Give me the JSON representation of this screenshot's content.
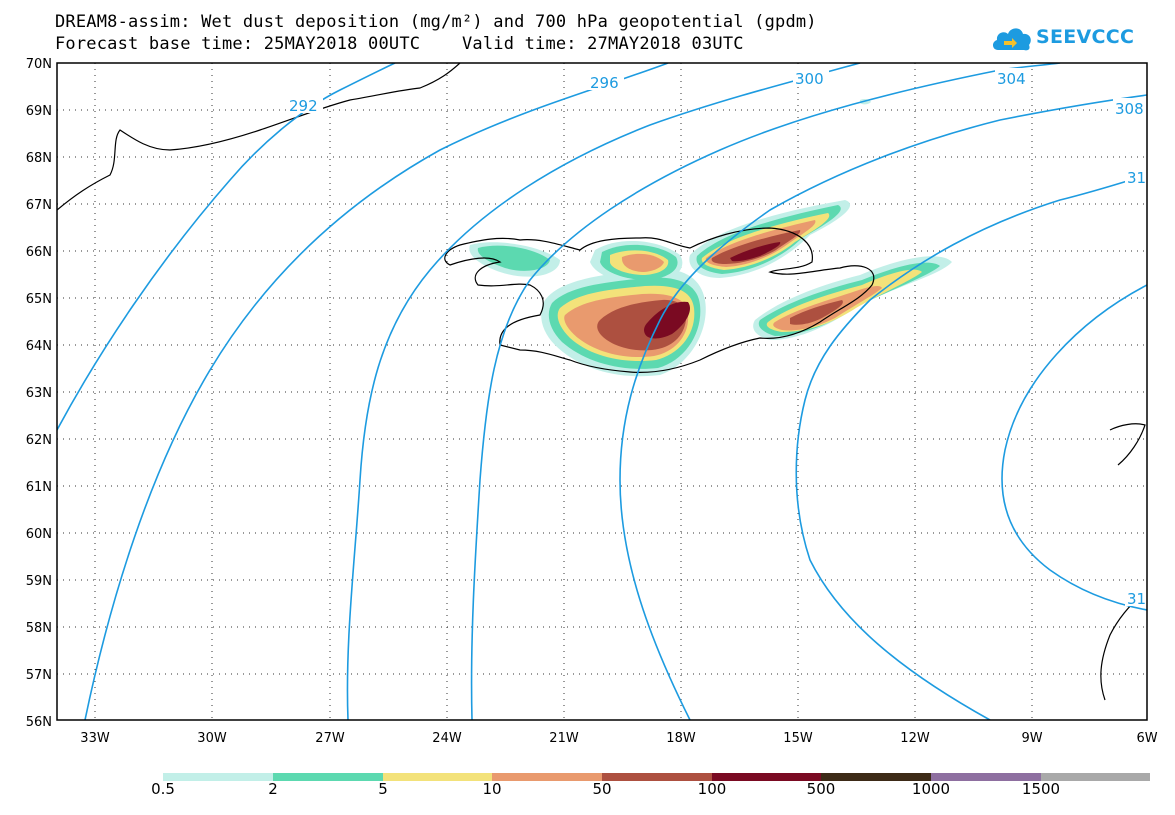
{
  "header": {
    "line1": "DREAM8-assim: Wet dust deposition (mg/m²) and 700 hPa geopotential (gpdm)",
    "line2": "Forecast base time: 25MAY2018 00UTC    Valid time: 27MAY2018 03UTC"
  },
  "logo": {
    "text": "SEEVCCC",
    "icon": "cloud-icon",
    "color": "#1d9be0"
  },
  "map": {
    "lat_labels": [
      "70N",
      "69N",
      "68N",
      "67N",
      "66N",
      "65N",
      "64N",
      "63N",
      "62N",
      "61N",
      "60N",
      "59N",
      "58N",
      "57N",
      "56N"
    ],
    "lon_labels": [
      "33W",
      "30W",
      "27W",
      "24W",
      "21W",
      "18W",
      "15W",
      "12W",
      "9W",
      "6W"
    ],
    "contour_labels": [
      "292",
      "296",
      "300",
      "304",
      "308",
      "31",
      "31"
    ],
    "contour_color": "#1d9be0"
  },
  "legend": {
    "labels": [
      "0.5",
      "2",
      "5",
      "10",
      "50",
      "100",
      "500",
      "1000",
      "1500"
    ],
    "colors": [
      "#c2efe8",
      "#5cd9b0",
      "#f3e27a",
      "#e99a6e",
      "#ad5040",
      "#7a0a22",
      "#3d2a17",
      "#8e6fa0",
      "#a9a9a9"
    ]
  }
}
